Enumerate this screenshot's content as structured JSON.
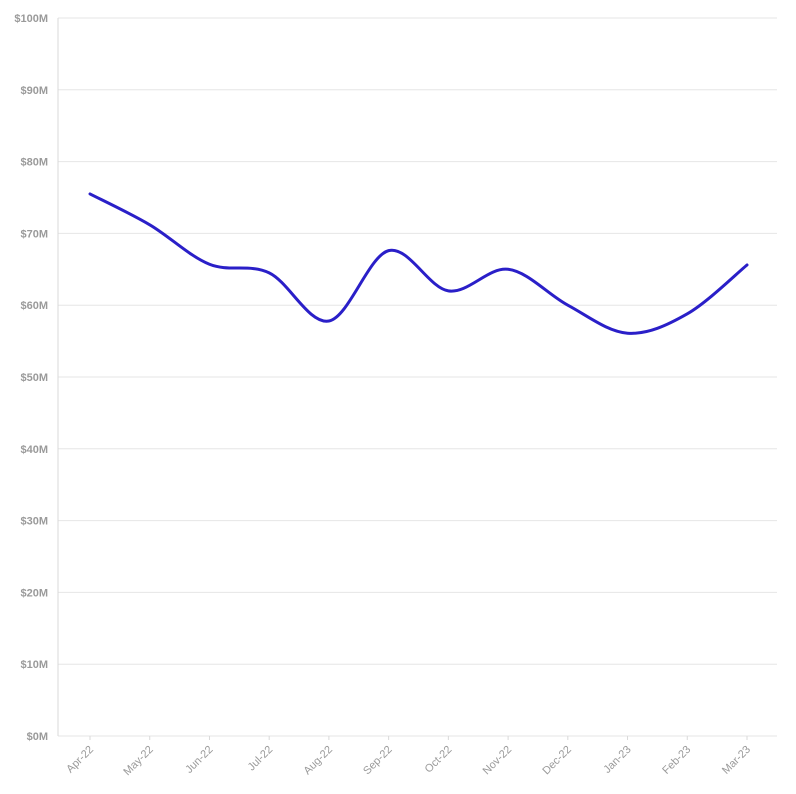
{
  "chart_data": {
    "type": "line",
    "title": "",
    "xlabel": "",
    "ylabel": "",
    "categories": [
      "Apr-22",
      "May-22",
      "Jun-22",
      "Jul-22",
      "Aug-22",
      "Sep-22",
      "Oct-22",
      "Nov-22",
      "Dec-22",
      "Jan-23",
      "Feb-23",
      "Mar-23"
    ],
    "series": [
      {
        "values": [
          75.5,
          71.2,
          65.7,
          64.5,
          57.8,
          67.6,
          62.0,
          65.0,
          60.0,
          56.1,
          58.8,
          65.6
        ]
      }
    ],
    "ylim": [
      0,
      100
    ],
    "y_ticks": [
      0,
      10,
      20,
      30,
      40,
      50,
      60,
      70,
      80,
      90,
      100
    ],
    "y_tick_labels": [
      "$0M",
      "$10M",
      "$20M",
      "$30M",
      "$40M",
      "$50M",
      "$60M",
      "$70M",
      "$80M",
      "$90M",
      "$100M"
    ],
    "grid": true,
    "legend": "none",
    "smooth": true,
    "colors": {
      "line": "#2a1fc8",
      "grid": "#e6e6e6",
      "tick_text": "#9a9a9a"
    }
  }
}
